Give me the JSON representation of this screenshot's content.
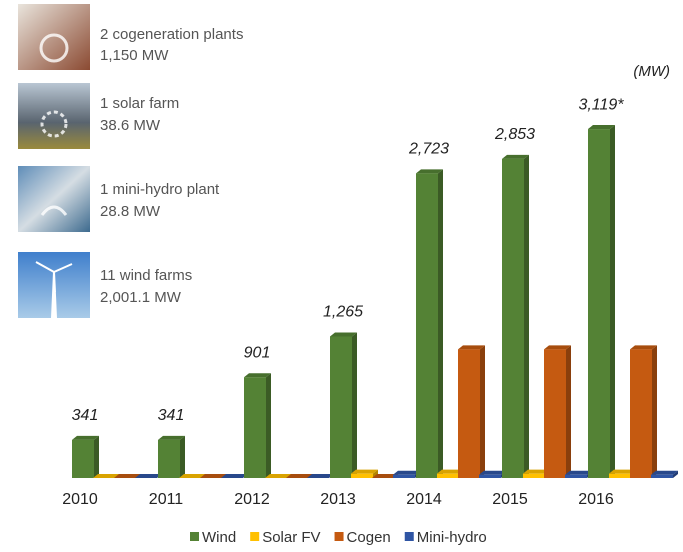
{
  "chart_data": {
    "type": "bar",
    "unit": "(MW)",
    "categories": [
      "2010",
      "2011",
      "2012",
      "2013",
      "2014",
      "2015",
      "2016"
    ],
    "series": [
      {
        "name": "Wind",
        "color": "#548235",
        "values": [
          341,
          341,
          901,
          1265,
          2723,
          2853,
          3119
        ],
        "value_labels": [
          "341",
          "341",
          "901",
          "1,265",
          "2,723",
          "2,853",
          "3,119*"
        ]
      },
      {
        "name": "Solar FV",
        "color": "#ffc000",
        "values": [
          0,
          0,
          0,
          38.6,
          38.6,
          38.6,
          38.6
        ]
      },
      {
        "name": "Cogen",
        "color": "#c55a11",
        "values": [
          0,
          0,
          0,
          0,
          1150,
          1150,
          1150
        ]
      },
      {
        "name": "Mini-hydro",
        "color": "#2f55a4",
        "values": [
          0,
          0,
          0,
          28.8,
          28.8,
          28.8,
          28.8
        ]
      }
    ],
    "ylim": [
      0,
      3200
    ]
  },
  "facilities": [
    {
      "count": "2 cogeneration plants",
      "capacity": "1,150 MW"
    },
    {
      "count": "1 solar farm",
      "capacity": "38.6 MW"
    },
    {
      "count": "1 mini-hydro plant",
      "capacity": "28.8 MW"
    },
    {
      "count": "11 wind farms",
      "capacity": "2,001.1 MW"
    }
  ]
}
